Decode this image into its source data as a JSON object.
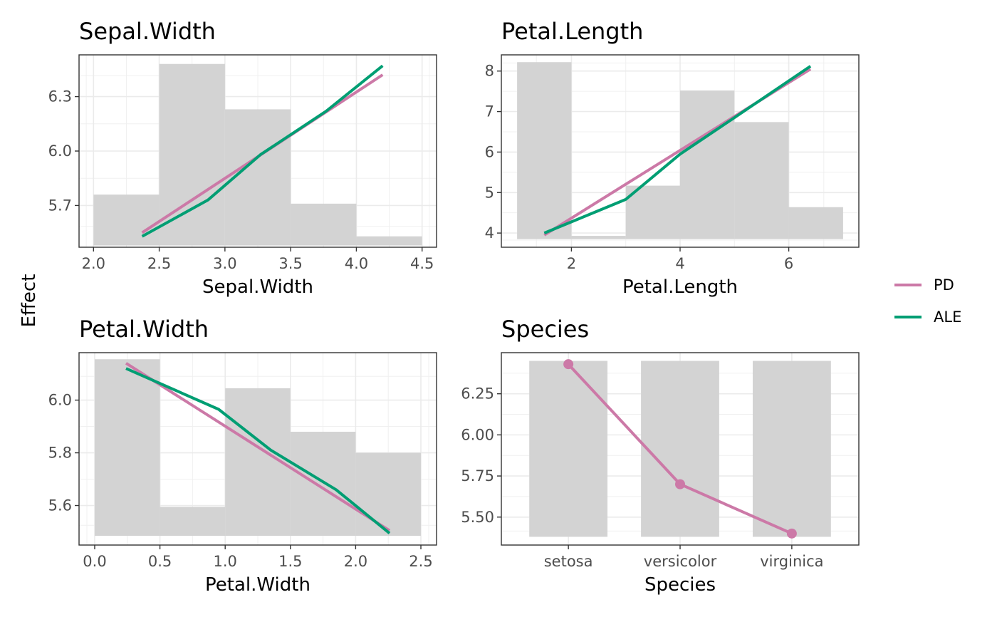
{
  "shared_ylabel": "Effect",
  "legend": {
    "items": [
      {
        "label": "PD",
        "color": "#CC79A7"
      },
      {
        "label": "ALE",
        "color": "#009E73"
      }
    ]
  },
  "chart_data": [
    {
      "type": "line",
      "title": "Sepal.Width",
      "xlabel": "Sepal.Width",
      "xlim": [
        1.89,
        4.61
      ],
      "ylim": [
        5.47,
        6.53
      ],
      "xticks": [
        2.0,
        2.5,
        3.0,
        3.5,
        4.0,
        4.5
      ],
      "xtick_labels": [
        "2.0",
        "2.5",
        "3.0",
        "3.5",
        "4.0",
        "4.5"
      ],
      "yticks": [
        5.7,
        6.0,
        6.3
      ],
      "ytick_labels": [
        "5.7",
        "6.0",
        "6.3"
      ],
      "histogram": {
        "bin_edges": [
          2.0,
          2.5,
          3.0,
          3.5,
          4.0,
          4.5
        ],
        "tops": [
          5.76,
          6.48,
          6.23,
          5.71,
          5.53
        ]
      },
      "histogram_base": 5.48,
      "series": [
        {
          "name": "PD",
          "color": "#CC79A7",
          "x": [
            2.37,
            4.2
          ],
          "y": [
            5.55,
            6.42
          ]
        },
        {
          "name": "ALE",
          "color": "#009E73",
          "x": [
            2.37,
            2.87,
            3.27,
            3.77,
            4.2
          ],
          "y": [
            5.53,
            5.73,
            5.98,
            6.22,
            6.47
          ]
        }
      ]
    },
    {
      "type": "line",
      "title": "Petal.Length",
      "xlabel": "Petal.Length",
      "xlim": [
        0.71,
        7.29
      ],
      "ylim": [
        3.65,
        8.4
      ],
      "xticks": [
        2,
        4,
        6
      ],
      "xtick_labels": [
        "2",
        "4",
        "6"
      ],
      "yticks": [
        4,
        5,
        6,
        7,
        8
      ],
      "ytick_labels": [
        "4",
        "5",
        "6",
        "7",
        "8"
      ],
      "histogram": {
        "bin_edges": [
          1,
          2,
          3,
          4,
          5,
          6,
          7
        ],
        "tops": [
          8.22,
          3.93,
          5.17,
          7.52,
          6.74,
          4.64
        ]
      },
      "histogram_base": 3.85,
      "series": [
        {
          "name": "PD",
          "color": "#CC79A7",
          "x": [
            1.5,
            6.4
          ],
          "y": [
            3.95,
            8.05
          ]
        },
        {
          "name": "ALE",
          "color": "#009E73",
          "x": [
            1.5,
            3.0,
            4.0,
            5.0,
            6.4
          ],
          "y": [
            4.0,
            4.83,
            5.95,
            6.85,
            8.12
          ]
        }
      ]
    },
    {
      "type": "line",
      "title": "Petal.Width",
      "xlabel": "Petal.Width",
      "xlim": [
        -0.12,
        2.62
      ],
      "ylim": [
        5.45,
        6.18
      ],
      "xticks": [
        0.0,
        0.5,
        1.0,
        1.5,
        2.0,
        2.5
      ],
      "xtick_labels": [
        "0.0",
        "0.5",
        "1.0",
        "1.5",
        "2.0",
        "2.5"
      ],
      "yticks": [
        5.6,
        5.8,
        6.0
      ],
      "ytick_labels": [
        "5.6",
        "5.8",
        "6.0"
      ],
      "histogram": {
        "bin_edges": [
          0.0,
          0.5,
          1.0,
          1.5,
          2.0,
          2.5
        ],
        "tops": [
          6.155,
          5.595,
          6.045,
          5.88,
          5.8
        ]
      },
      "histogram_base": 5.485,
      "series": [
        {
          "name": "PD",
          "color": "#CC79A7",
          "x": [
            0.24,
            2.26
          ],
          "y": [
            6.14,
            5.505
          ]
        },
        {
          "name": "ALE",
          "color": "#009E73",
          "x": [
            0.24,
            0.95,
            1.35,
            1.85,
            2.26
          ],
          "y": [
            6.12,
            5.965,
            5.81,
            5.66,
            5.495
          ]
        }
      ]
    },
    {
      "type": "line",
      "title": "Species",
      "xlabel": "Species",
      "categories": [
        "setosa",
        "versicolor",
        "virginica"
      ],
      "ylim": [
        5.33,
        6.5
      ],
      "yticks": [
        5.5,
        5.75,
        6.0,
        6.25
      ],
      "ytick_labels": [
        "5.50",
        "5.75",
        "6.00",
        "6.25"
      ],
      "bars": {
        "top": 6.45,
        "base": 5.38,
        "width": 0.7
      },
      "series": [
        {
          "name": "PD",
          "color": "#CC79A7",
          "values": [
            6.43,
            5.7,
            5.4
          ]
        }
      ]
    }
  ]
}
